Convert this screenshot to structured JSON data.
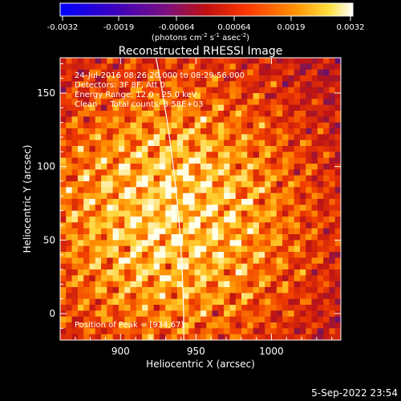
{
  "colorbar": {
    "ticks": [
      "-0.0032",
      "-0.0019",
      "-0.00064",
      "0.00064",
      "0.0019",
      "0.0032"
    ],
    "unit_main": "(photons cm",
    "unit_sup1": "-2",
    "unit_mid": " s",
    "unit_sup2": "-1",
    "unit_mid2": " asec",
    "unit_sup3": "-2",
    "unit_end": ")"
  },
  "footer": {
    "datestamp": "5-Sep-2022 23:54"
  },
  "chart_data": {
    "type": "heatmap",
    "title": "Reconstructed RHESSI Image",
    "xlabel": "Heliocentric X (arcsec)",
    "ylabel": "Heliocentric Y (arcsec)",
    "xlim": [
      860,
      1046
    ],
    "ylim": [
      -18,
      174
    ],
    "x_ticks": [
      900,
      950,
      1000
    ],
    "y_ticks": [
      0,
      50,
      100,
      150
    ],
    "colorscale_range": [
      -0.0032,
      0.0032
    ],
    "annotations": [
      "24-Jul-2016 08:26:20.000 to 08:29:56.000",
      "Detectors: 3F 8F, Att 0",
      "Energy Range: 12.0 - 25.0 keV",
      "Clean     Total counts: 3.58E+03"
    ],
    "peak_label": "Position of Peak = [934,67]",
    "peak": [
      934,
      67
    ]
  }
}
